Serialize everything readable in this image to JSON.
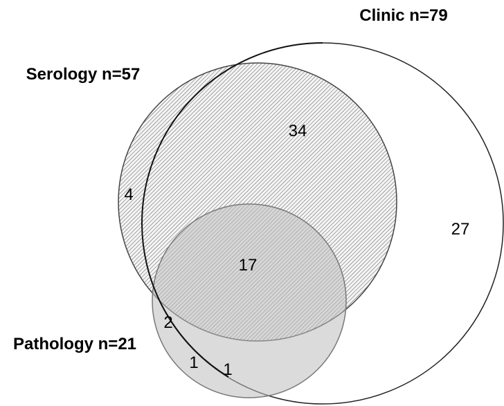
{
  "sets": [
    {
      "label": "Clinic n=79"
    },
    {
      "label": "Serology n=57"
    },
    {
      "label": "Pathology n=21"
    }
  ],
  "regions": [
    {
      "count": 34
    },
    {
      "count": 4
    },
    {
      "count": 27
    },
    {
      "count": 17
    },
    {
      "count": 2
    },
    {
      "count": 1
    },
    {
      "count": 1
    }
  ]
}
